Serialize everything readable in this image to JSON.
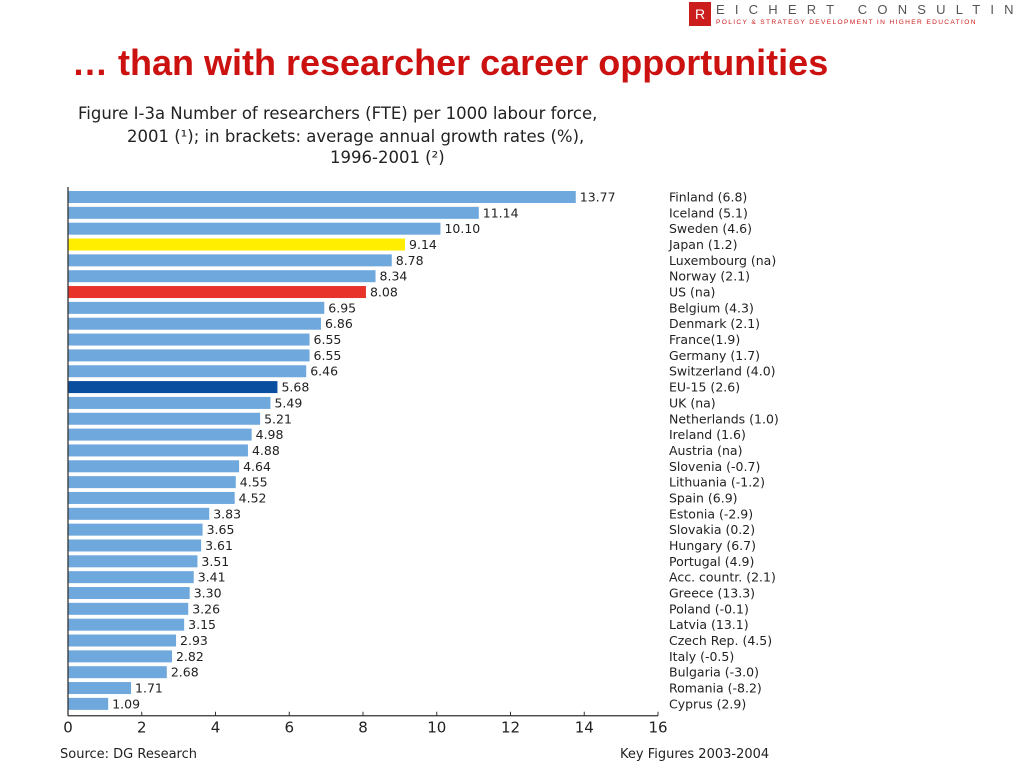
{
  "logo": {
    "letter": "R",
    "name_rest": "EICHERT CONSULTING",
    "subtitle": "POLICY & STRATEGY DEVELOPMENT IN HIGHER EDUCATION"
  },
  "slide_title": "… than with researcher career opportunities",
  "figure": {
    "title_line1": "Figure I-3a   Number of researchers (FTE) per 1000 labour force,",
    "title_line2": "2001 (¹); in brackets: average annual growth rates (%),",
    "title_line3": "1996-2001 (²)"
  },
  "footer": {
    "source": "Source:  DG Research",
    "reference": "Key Figures 2003-2004"
  },
  "colors": {
    "default_bar": "#6fa8dc",
    "japan_bar": "#ffee00",
    "us_bar": "#e8332a",
    "eu_bar": "#0a4ea0",
    "title_red": "#cc1111"
  },
  "chart_data": {
    "type": "bar",
    "orientation": "horizontal",
    "title": "Figure I-3a   Number of researchers (FTE) per 1000 labour force, 2001 (¹); in brackets: average annual growth rates (%), 1996-2001 (²)",
    "xlim": [
      0,
      16
    ],
    "xticks": [
      "0",
      "2",
      "4",
      "6",
      "8",
      "10",
      "12",
      "14",
      "16"
    ],
    "grid": false,
    "bars": [
      {
        "label": "Finland (6.8)",
        "value": 13.77,
        "value_label": "13.77",
        "color": "default"
      },
      {
        "label": "Iceland (5.1)",
        "value": 11.14,
        "value_label": "11.14",
        "color": "default"
      },
      {
        "label": "Sweden (4.6)",
        "value": 10.1,
        "value_label": "10.10",
        "color": "default"
      },
      {
        "label": "Japan (1.2)",
        "value": 9.14,
        "value_label": "9.14",
        "color": "japan"
      },
      {
        "label": "Luxembourg (na)",
        "value": 8.78,
        "value_label": "8.78",
        "color": "default"
      },
      {
        "label": "Norway (2.1)",
        "value": 8.34,
        "value_label": "8.34",
        "color": "default"
      },
      {
        "label": "US (na)",
        "value": 8.08,
        "value_label": "8.08",
        "color": "us"
      },
      {
        "label": "Belgium (4.3)",
        "value": 6.95,
        "value_label": "6.95",
        "color": "default"
      },
      {
        "label": "Denmark (2.1)",
        "value": 6.86,
        "value_label": "6.86",
        "color": "default"
      },
      {
        "label": "France(1.9)",
        "value": 6.55,
        "value_label": "6.55",
        "color": "default"
      },
      {
        "label": "Germany (1.7)",
        "value": 6.55,
        "value_label": "6.55",
        "color": "default"
      },
      {
        "label": "Switzerland (4.0)",
        "value": 6.46,
        "value_label": "6.46",
        "color": "default"
      },
      {
        "label": "EU-15 (2.6)",
        "value": 5.68,
        "value_label": "5.68",
        "color": "eu"
      },
      {
        "label": "UK (na)",
        "value": 5.49,
        "value_label": "5.49",
        "color": "default"
      },
      {
        "label": "Netherlands (1.0)",
        "value": 5.21,
        "value_label": "5.21",
        "color": "default"
      },
      {
        "label": "Ireland (1.6)",
        "value": 4.98,
        "value_label": "4.98",
        "color": "default"
      },
      {
        "label": "Austria (na)",
        "value": 4.88,
        "value_label": "4.88",
        "color": "default"
      },
      {
        "label": "Slovenia (-0.7)",
        "value": 4.64,
        "value_label": "4.64",
        "color": "default"
      },
      {
        "label": "Lithuania (-1.2)",
        "value": 4.55,
        "value_label": "4.55",
        "color": "default"
      },
      {
        "label": "Spain (6.9)",
        "value": 4.52,
        "value_label": "4.52",
        "color": "default"
      },
      {
        "label": "Estonia (-2.9)",
        "value": 3.83,
        "value_label": "3.83",
        "color": "default"
      },
      {
        "label": "Slovakia (0.2)",
        "value": 3.65,
        "value_label": "3.65",
        "color": "default"
      },
      {
        "label": "Hungary (6.7)",
        "value": 3.61,
        "value_label": "3.61",
        "color": "default"
      },
      {
        "label": "Portugal (4.9)",
        "value": 3.51,
        "value_label": "3.51",
        "color": "default"
      },
      {
        "label": "Acc. countr. (2.1)",
        "value": 3.41,
        "value_label": "3.41",
        "color": "default"
      },
      {
        "label": "Greece (13.3)",
        "value": 3.3,
        "value_label": "3.30",
        "color": "default"
      },
      {
        "label": "Poland (-0.1)",
        "value": 3.26,
        "value_label": "3.26",
        "color": "default"
      },
      {
        "label": "Latvia (13.1)",
        "value": 3.15,
        "value_label": "3.15",
        "color": "default"
      },
      {
        "label": "Czech Rep. (4.5)",
        "value": 2.93,
        "value_label": "2.93",
        "color": "default"
      },
      {
        "label": "Italy (-0.5)",
        "value": 2.82,
        "value_label": "2.82",
        "color": "default"
      },
      {
        "label": "Bulgaria (-3.0)",
        "value": 2.68,
        "value_label": "2.68",
        "color": "default"
      },
      {
        "label": "Romania (-8.2)",
        "value": 1.71,
        "value_label": "1.71",
        "color": "default"
      },
      {
        "label": "Cyprus (2.9)",
        "value": 1.09,
        "value_label": "1.09",
        "color": "default"
      }
    ]
  }
}
